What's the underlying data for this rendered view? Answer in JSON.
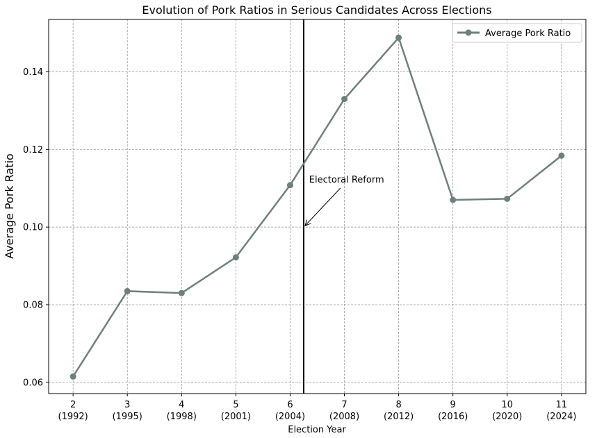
{
  "chart_data": {
    "type": "line",
    "title": "Evolution of Pork Ratios in Serious Candidates Across Elections",
    "xlabel": "Election Year",
    "ylabel": "Average Pork Ratio",
    "x": [
      2,
      3,
      4,
      5,
      6,
      7,
      8,
      9,
      10,
      11
    ],
    "x_tick_labels": [
      [
        "2",
        "(1992)"
      ],
      [
        "3",
        "(1995)"
      ],
      [
        "4",
        "(1998)"
      ],
      [
        "5",
        "(2001)"
      ],
      [
        "6",
        "(2004)"
      ],
      [
        "7",
        "(2008)"
      ],
      [
        "8",
        "(2012)"
      ],
      [
        "9",
        "(2016)"
      ],
      [
        "10",
        "(2020)"
      ],
      [
        "11",
        "(2024)"
      ]
    ],
    "y_ticks": [
      0.06,
      0.08,
      0.1,
      0.12,
      0.14
    ],
    "y_tick_labels": [
      "0.06",
      "0.08",
      "0.10",
      "0.12",
      "0.14"
    ],
    "xlim": [
      1.55,
      11.45
    ],
    "ylim": [
      0.0571,
      0.1535
    ],
    "grid": true,
    "legend_position": "top-right",
    "series": [
      {
        "name": "Average Pork Ratio",
        "color": "#6e7f7c",
        "values": [
          0.0615,
          0.0835,
          0.083,
          0.0922,
          0.1108,
          0.133,
          0.1488,
          0.107,
          0.1073,
          0.1184
        ]
      }
    ],
    "vline": {
      "x": 6.25,
      "color": "#000000"
    },
    "annotation": {
      "text": "Electoral Reform",
      "text_at": [
        6.35,
        0.1095
      ],
      "arrow_to": [
        6.25,
        0.1
      ]
    }
  }
}
